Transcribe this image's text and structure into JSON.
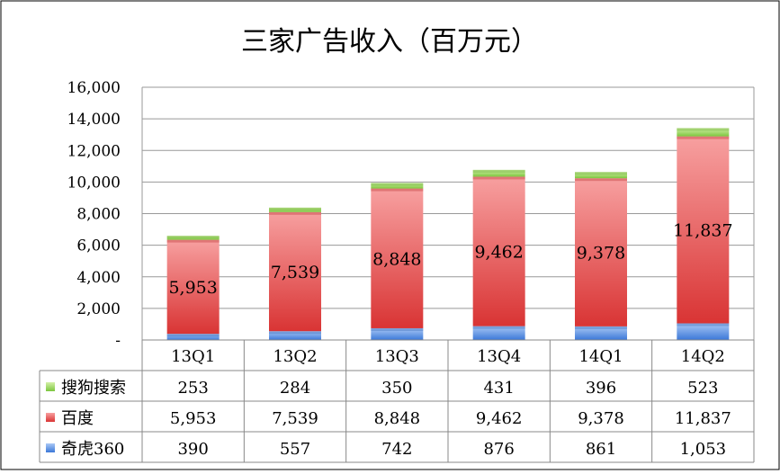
{
  "chart_data": {
    "type": "bar",
    "stacked": true,
    "title": "三家广告收入（百万元）",
    "categories": [
      "13Q1",
      "13Q2",
      "13Q3",
      "13Q4",
      "14Q1",
      "14Q2"
    ],
    "series": [
      {
        "name": "奇虎360",
        "values": [
          390,
          557,
          742,
          876,
          861,
          1053
        ],
        "display": [
          "390",
          "557",
          "742",
          "876",
          "861",
          "1,053"
        ],
        "color": "#4a86e8"
      },
      {
        "name": "百度",
        "values": [
          5953,
          7539,
          8848,
          9462,
          9378,
          11837
        ],
        "display": [
          "5,953",
          "7,539",
          "8,848",
          "9,462",
          "9,378",
          "11,837"
        ],
        "color": "#e03c3c"
      },
      {
        "name": "搜狗搜索",
        "values": [
          253,
          284,
          350,
          431,
          396,
          523
        ],
        "display": [
          "253",
          "284",
          "350",
          "431",
          "396",
          "523"
        ],
        "color": "#8fd14f"
      }
    ],
    "data_labels_series": "百度",
    "ylim": [
      0,
      16000
    ],
    "yticks": [
      0,
      2000,
      4000,
      6000,
      8000,
      10000,
      12000,
      14000,
      16000
    ],
    "ytick_labels": [
      "-",
      "2,000",
      "4,000",
      "6,000",
      "8,000",
      "10,000",
      "12,000",
      "14,000",
      "16,000"
    ],
    "grid": true,
    "legend": "data-table-bottom"
  }
}
